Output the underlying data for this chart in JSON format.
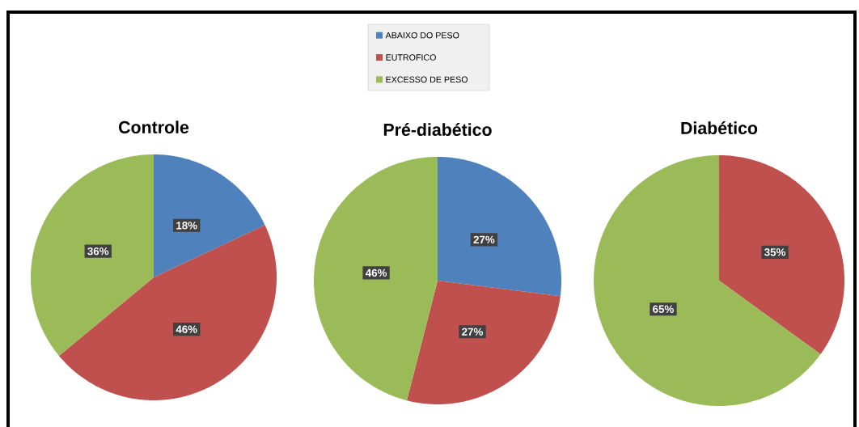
{
  "chart_data": {
    "type": "pie",
    "categories": [
      "ABAIXO DO PESO",
      "EUTROFICO",
      "EXCESSO DE PESO"
    ],
    "colors": [
      "#4f81bd",
      "#c0504d",
      "#9bbb59"
    ],
    "legend": "top",
    "series": [
      {
        "name": "Controle",
        "values": [
          18,
          46,
          36
        ],
        "value_labels": [
          "18%",
          "46%",
          "36%"
        ]
      },
      {
        "name": "Pré-diabético",
        "values": [
          27,
          27,
          46
        ],
        "value_labels": [
          "27%",
          "27%",
          "46%"
        ]
      },
      {
        "name": "Diabético",
        "values": [
          0,
          35,
          65
        ],
        "value_labels": [
          null,
          "35%",
          "65%"
        ]
      }
    ]
  }
}
